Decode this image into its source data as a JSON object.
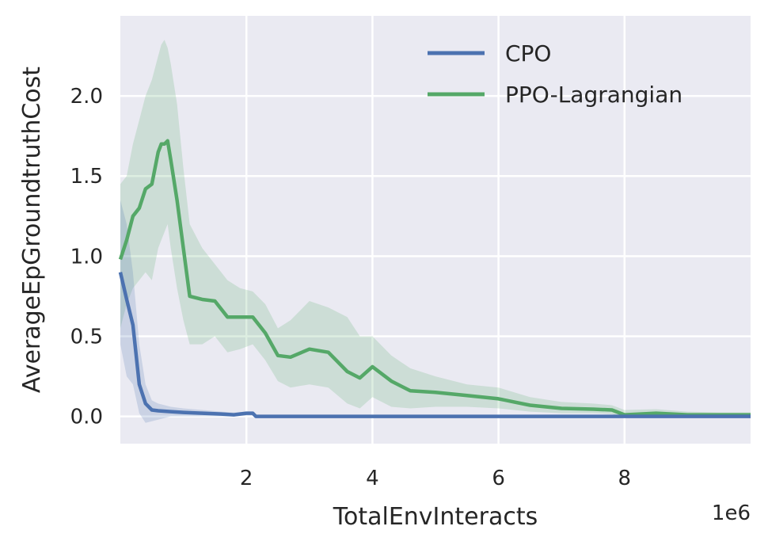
{
  "chart_data": {
    "type": "line",
    "xlabel": "TotalEnvInteracts",
    "ylabel": "AverageEpGroundtruthCost",
    "x_offset_label": "1e6",
    "xlim": [
      0.0,
      10.0
    ],
    "ylim": [
      -0.17,
      2.5
    ],
    "xticks": [
      2,
      4,
      6,
      8
    ],
    "xtick_labels": [
      "2",
      "4",
      "6",
      "8"
    ],
    "yticks": [
      0.0,
      0.5,
      1.0,
      1.5,
      2.0
    ],
    "ytick_labels": [
      "0.0",
      "0.5",
      "1.0",
      "1.5",
      "2.0"
    ],
    "grid": true,
    "legend_position": "top-right",
    "colors": {
      "background": "#eaeaf2",
      "grid": "#ffffff",
      "text": "#262626"
    },
    "series": [
      {
        "name": "CPO",
        "color": "#4c72b0",
        "x": [
          0.0,
          0.1,
          0.2,
          0.3,
          0.4,
          0.5,
          0.6,
          0.8,
          1.0,
          1.3,
          1.6,
          1.8,
          2.0,
          2.1,
          2.15,
          2.5,
          4.0,
          6.0,
          8.0,
          10.0
        ],
        "y": [
          0.9,
          0.73,
          0.57,
          0.2,
          0.08,
          0.04,
          0.035,
          0.03,
          0.025,
          0.02,
          0.015,
          0.01,
          0.02,
          0.02,
          0.0,
          0.0,
          0.0,
          0.0,
          0.0,
          0.0
        ],
        "band_upper": [
          1.35,
          1.2,
          0.9,
          0.45,
          0.2,
          0.1,
          0.08,
          0.06,
          0.05,
          0.04,
          0.03,
          0.025,
          0.03,
          0.03,
          0.0,
          0.0,
          0.0,
          0.0,
          0.0,
          0.0
        ],
        "band_lower": [
          0.45,
          0.25,
          0.2,
          0.02,
          -0.04,
          -0.03,
          -0.02,
          0.0,
          0.0,
          0.0,
          0.0,
          0.0,
          0.005,
          0.005,
          0.0,
          0.0,
          0.0,
          0.0,
          0.0,
          0.0
        ]
      },
      {
        "name": "PPO-Lagrangian",
        "color": "#55a868",
        "x": [
          0.0,
          0.1,
          0.2,
          0.3,
          0.4,
          0.5,
          0.6,
          0.65,
          0.7,
          0.75,
          0.8,
          0.9,
          1.0,
          1.1,
          1.3,
          1.5,
          1.7,
          1.9,
          2.1,
          2.3,
          2.5,
          2.7,
          3.0,
          3.3,
          3.6,
          3.8,
          4.0,
          4.3,
          4.6,
          5.0,
          5.5,
          6.0,
          6.5,
          7.0,
          7.5,
          7.8,
          8.0,
          8.5,
          9.0,
          9.5,
          10.0
        ],
        "y": [
          0.98,
          1.1,
          1.25,
          1.3,
          1.42,
          1.45,
          1.65,
          1.7,
          1.7,
          1.72,
          1.6,
          1.35,
          1.05,
          0.75,
          0.73,
          0.72,
          0.62,
          0.62,
          0.62,
          0.52,
          0.38,
          0.37,
          0.42,
          0.4,
          0.28,
          0.24,
          0.31,
          0.22,
          0.16,
          0.15,
          0.13,
          0.11,
          0.07,
          0.05,
          0.045,
          0.04,
          0.01,
          0.02,
          0.01,
          0.01,
          0.01
        ],
        "band_upper": [
          1.45,
          1.5,
          1.7,
          1.85,
          2.0,
          2.1,
          2.25,
          2.32,
          2.35,
          2.3,
          2.2,
          1.95,
          1.55,
          1.2,
          1.05,
          0.95,
          0.85,
          0.8,
          0.78,
          0.7,
          0.55,
          0.6,
          0.72,
          0.68,
          0.62,
          0.5,
          0.5,
          0.38,
          0.3,
          0.25,
          0.2,
          0.18,
          0.12,
          0.09,
          0.08,
          0.07,
          0.04,
          0.045,
          0.03,
          0.025,
          0.025
        ],
        "band_lower": [
          0.55,
          0.7,
          0.8,
          0.85,
          0.9,
          0.85,
          1.05,
          1.1,
          1.15,
          1.2,
          1.05,
          0.8,
          0.6,
          0.45,
          0.45,
          0.5,
          0.4,
          0.42,
          0.45,
          0.35,
          0.22,
          0.18,
          0.2,
          0.18,
          0.08,
          0.05,
          0.12,
          0.06,
          0.05,
          0.06,
          0.06,
          0.05,
          0.03,
          0.02,
          0.02,
          0.015,
          -0.01,
          0.0,
          0.0,
          0.0,
          0.0
        ]
      }
    ]
  }
}
